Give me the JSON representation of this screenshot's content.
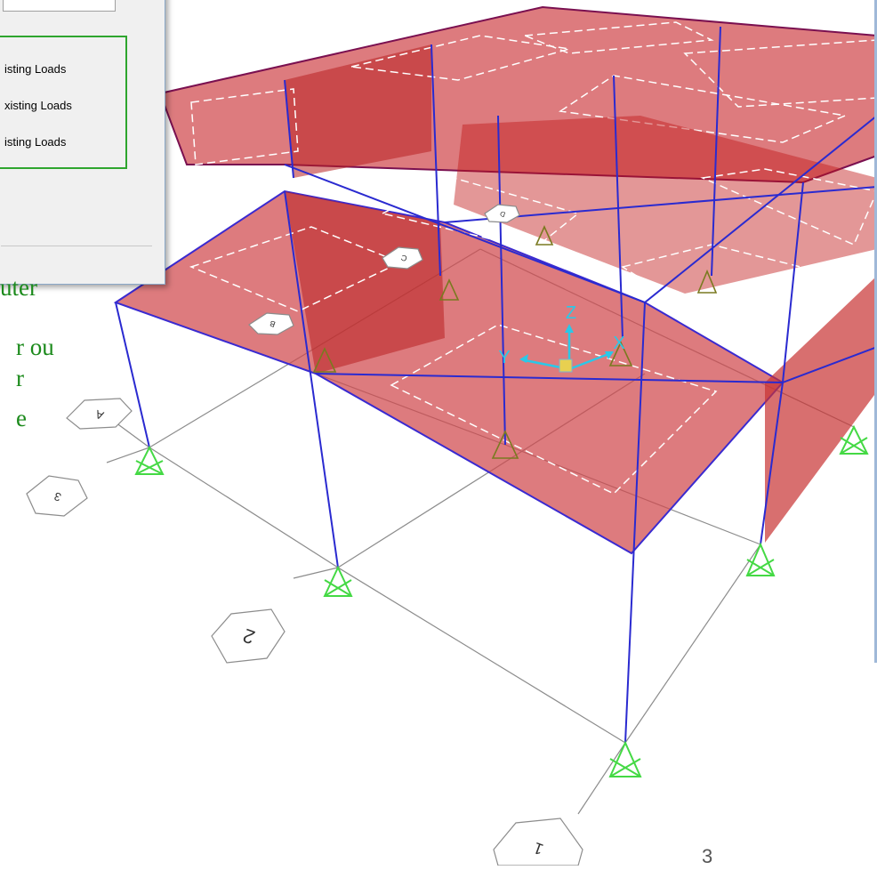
{
  "dialog": {
    "options": [
      "isting Loads",
      "xisting Loads",
      "isting Loads"
    ]
  },
  "side_text": [
    "uter",
    "r ou",
    "r",
    "e"
  ],
  "axes": {
    "x": "X",
    "y": "Y",
    "z": "Z"
  },
  "grid_bubbles": [
    "A",
    "B",
    "C",
    "D",
    "3",
    "2",
    "1"
  ],
  "page_number": "3",
  "colors": {
    "slab_fill": "#c83232",
    "frame_line": "#2a2ad0",
    "support": "#44d944",
    "dashed_edge": "#ffffff",
    "annotation_green": "#1b8a1b",
    "axis_cyan": "#2ac8e8"
  }
}
